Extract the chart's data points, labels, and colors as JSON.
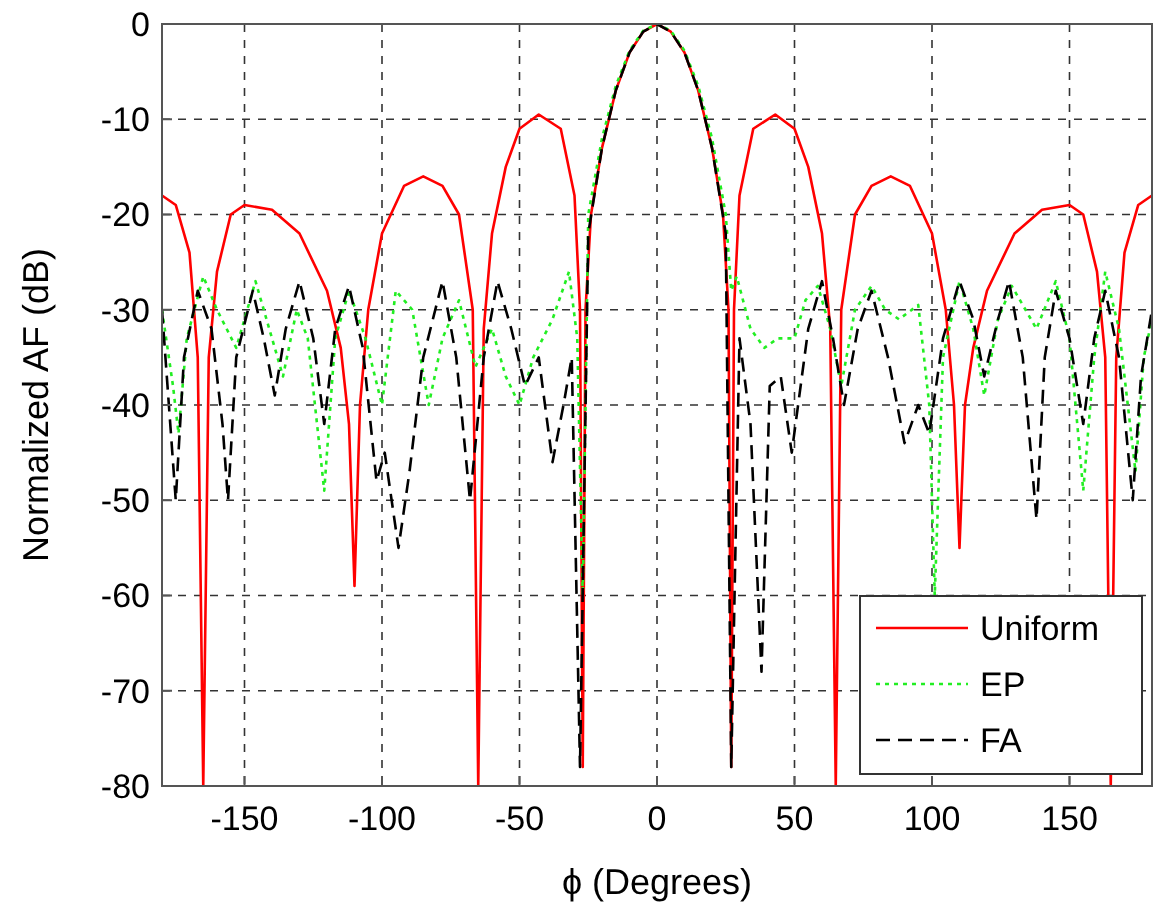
{
  "chart_data": {
    "type": "line",
    "xlabel": "ϕ (Degrees)",
    "ylabel": "Normalized AF (dB)",
    "xlim": [
      -180,
      180
    ],
    "ylim": [
      -80,
      0
    ],
    "xticks": [
      -150,
      -100,
      -50,
      0,
      50,
      100,
      150
    ],
    "yticks": [
      -80,
      -70,
      -60,
      -50,
      -40,
      -30,
      -20,
      -10,
      0
    ],
    "grid": true,
    "legend": "bottom right",
    "series": [
      {
        "name": "Uniform",
        "color": "#ff0000",
        "line_style": "solid",
        "x": [
          -180,
          -175,
          -170,
          -167,
          -165,
          -163,
          -160,
          -155,
          -150,
          -140,
          -130,
          -120,
          -115,
          -112,
          -110,
          -108,
          -105,
          -100,
          -92,
          -85,
          -78,
          -72,
          -67,
          -65,
          -63,
          -60,
          -55,
          -50,
          -43,
          -35,
          -30,
          -28,
          -27,
          -26,
          -24,
          -20,
          -15,
          -10,
          -5,
          0,
          5,
          10,
          15,
          20,
          24,
          26,
          27,
          28,
          30,
          35,
          43,
          50,
          55,
          60,
          63,
          65,
          67,
          72,
          78,
          85,
          92,
          100,
          105,
          108,
          110,
          112,
          115,
          120,
          130,
          140,
          150,
          155,
          160,
          163,
          165,
          167,
          170,
          175,
          180
        ],
        "values": [
          -18,
          -19,
          -24,
          -35,
          -80,
          -35,
          -26,
          -20,
          -19,
          -19.5,
          -22,
          -28,
          -34,
          -42,
          -59,
          -40,
          -30,
          -22,
          -17,
          -16,
          -17,
          -20,
          -30,
          -80,
          -32,
          -22,
          -15,
          -11,
          -9.5,
          -11,
          -18,
          -30,
          -78,
          -30,
          -20,
          -13,
          -7,
          -3,
          -0.8,
          0,
          -0.8,
          -3,
          -7,
          -13,
          -20,
          -30,
          -78,
          -30,
          -18,
          -11,
          -9.5,
          -11,
          -15,
          -22,
          -32,
          -80,
          -30,
          -20,
          -17,
          -16,
          -17,
          -22,
          -30,
          -40,
          -55,
          -40,
          -34,
          -28,
          -22,
          -19.5,
          -19,
          -20,
          -26,
          -35,
          -80,
          -35,
          -24,
          -19,
          -18
        ]
      },
      {
        "name": "EP",
        "color": "#22ee22",
        "line_style": "dotted",
        "x": [
          -180,
          -176,
          -174,
          -171,
          -165,
          -160,
          -153,
          -146,
          -141,
          -136,
          -131,
          -127,
          -121,
          -117,
          -112,
          -106,
          -100,
          -95,
          -89,
          -83,
          -78,
          -72,
          -66,
          -60,
          -55,
          -50,
          -45,
          -38,
          -32,
          -29,
          -27,
          -25,
          -20,
          -15,
          -10,
          -5,
          0,
          5,
          10,
          15,
          20,
          25,
          27,
          29,
          34,
          39,
          44,
          50,
          54,
          58.5,
          63,
          67,
          72,
          78,
          83,
          88,
          95,
          99,
          101,
          104,
          110,
          115,
          119,
          124,
          129,
          134,
          138,
          145,
          150,
          155,
          159,
          163,
          168,
          174,
          177,
          180
        ],
        "values": [
          -30,
          -38,
          -43,
          -33,
          -26.5,
          -30,
          -34,
          -27,
          -32,
          -37,
          -30,
          -33,
          -49,
          -33,
          -28,
          -33,
          -40,
          -28,
          -30,
          -40,
          -33,
          -29,
          -36,
          -32,
          -37,
          -40,
          -35,
          -31,
          -26,
          -33,
          -60,
          -20,
          -12,
          -6.5,
          -2.8,
          -0.7,
          0,
          -0.7,
          -2.8,
          -6.5,
          -12,
          -20,
          -28,
          -26.5,
          -32,
          -34,
          -33,
          -33,
          -29,
          -27.5,
          -32,
          -38,
          -30,
          -27.5,
          -30,
          -31,
          -29.5,
          -40,
          -60,
          -35,
          -27,
          -32,
          -39,
          -31,
          -27.5,
          -30,
          -32,
          -27,
          -33,
          -49,
          -35,
          -26,
          -32,
          -47,
          -35,
          -31
        ]
      },
      {
        "name": "FA",
        "color": "#000000",
        "line_style": "dashed",
        "x": [
          -180,
          -178,
          -175,
          -172,
          -167,
          -162,
          -158,
          -156,
          -153,
          -147,
          -143,
          -139,
          -135,
          -130,
          -125,
          -121,
          -117,
          -112,
          -107,
          -102,
          -99,
          -94,
          -90,
          -85,
          -78,
          -73,
          -68,
          -63,
          -58,
          -53,
          -48,
          -43,
          -38,
          -34,
          -31,
          -28,
          -25,
          -20,
          -15,
          -10,
          -5,
          0,
          5,
          10,
          15,
          20,
          25,
          27,
          30,
          34,
          38,
          41,
          45,
          49,
          55,
          60,
          64,
          68,
          73,
          78,
          84,
          90,
          95,
          99,
          104,
          110,
          115,
          119,
          124,
          128,
          133,
          138,
          141,
          145,
          150,
          155,
          159,
          163,
          168,
          173,
          176,
          180
        ],
        "values": [
          -30,
          -38,
          -50,
          -35,
          -28,
          -32,
          -42,
          -50,
          -35,
          -28,
          -33,
          -39,
          -32,
          -27,
          -33,
          -42,
          -32,
          -27.5,
          -34,
          -48,
          -45,
          -55,
          -47,
          -35,
          -27,
          -35,
          -50,
          -35,
          -27,
          -32,
          -38,
          -35,
          -46,
          -40,
          -35,
          -78,
          -22,
          -13,
          -7,
          -3,
          -0.8,
          0,
          -0.8,
          -3,
          -7,
          -13,
          -22,
          -78,
          -33,
          -42,
          -68,
          -38,
          -37,
          -45,
          -32,
          -27,
          -33,
          -40,
          -32,
          -28,
          -35,
          -44,
          -40,
          -43,
          -33,
          -27,
          -31,
          -37,
          -31,
          -27,
          -35,
          -52,
          -35,
          -28,
          -33,
          -42,
          -33,
          -28,
          -35,
          -50,
          -37,
          -30
        ]
      }
    ]
  }
}
